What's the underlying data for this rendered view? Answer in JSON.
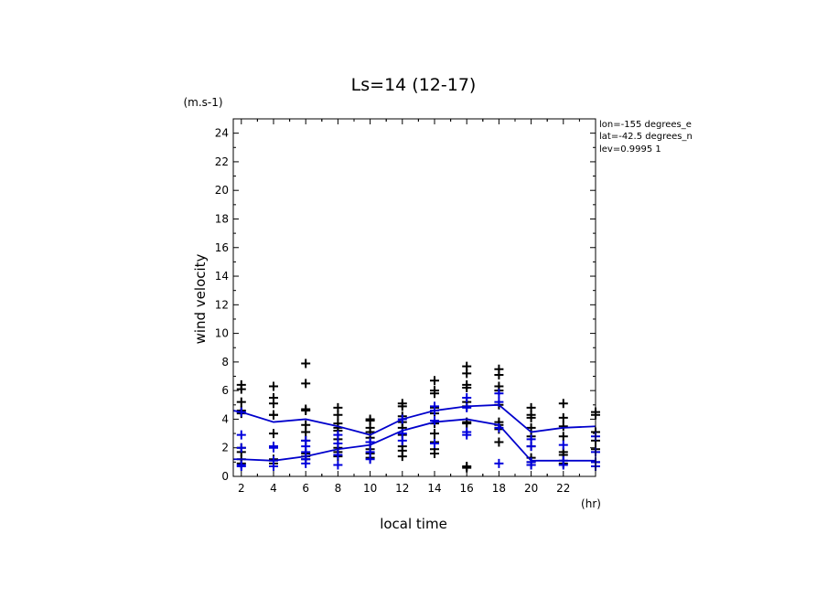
{
  "chart_data": {
    "type": "line",
    "title": "Ls=14 (12-17)",
    "ylabel": "wind velocity",
    "yunit": "(m.s-1)",
    "xlabel": "local time",
    "xunit": "(hr)",
    "info": [
      "lon=-155 degrees_e",
      "lat=-42.5 degrees_n",
      "lev=0.9995 1"
    ],
    "xlim": [
      1.5,
      24
    ],
    "ylim": [
      0,
      25
    ],
    "xticks": [
      2,
      4,
      6,
      8,
      10,
      12,
      14,
      16,
      18,
      20,
      22
    ],
    "yticks": [
      0,
      2,
      4,
      6,
      8,
      10,
      12,
      14,
      16,
      18,
      20,
      22,
      24
    ],
    "series": [
      {
        "color": "#0000cc",
        "x": [
          1.5,
          2,
          4,
          6,
          8,
          10,
          12,
          14,
          16,
          18,
          20,
          22,
          24
        ],
        "values": [
          4.6,
          4.5,
          3.8,
          4.0,
          3.5,
          2.9,
          4.0,
          4.6,
          4.9,
          5.0,
          3.1,
          3.4,
          3.5
        ]
      },
      {
        "color": "#0000cc",
        "x": [
          1.5,
          2,
          4,
          6,
          8,
          10,
          12,
          14,
          16,
          18,
          20,
          22,
          24
        ],
        "values": [
          1.2,
          1.2,
          1.1,
          1.4,
          1.9,
          2.2,
          3.2,
          3.8,
          4.0,
          3.6,
          1.1,
          1.1,
          1.1
        ]
      }
    ],
    "scatter_black": [
      {
        "x": 2,
        "values": [
          6.4,
          6.1,
          5.2,
          4.6,
          4.4,
          2.0,
          1.7,
          1.2,
          0.9
        ]
      },
      {
        "x": 4,
        "values": [
          6.3,
          5.5,
          5.1,
          4.3,
          4.3,
          3.0,
          2.1,
          1.2,
          0.9
        ]
      },
      {
        "x": 6,
        "values": [
          7.9,
          6.5,
          4.7,
          4.6,
          3.6,
          3.1,
          2.5,
          1.6,
          1.4,
          1.2
        ]
      },
      {
        "x": 8,
        "values": [
          4.8,
          4.3,
          3.7,
          3.4,
          3.2,
          2.6,
          2.0,
          1.7,
          1.4
        ]
      },
      {
        "x": 10,
        "values": [
          4.0,
          3.9,
          3.4,
          3.1,
          2.7,
          2.4,
          1.9,
          1.6,
          1.3
        ]
      },
      {
        "x": 12,
        "values": [
          5.1,
          4.9,
          4.2,
          3.8,
          3.4,
          2.9,
          2.1,
          1.8,
          1.4
        ]
      },
      {
        "x": 14,
        "values": [
          6.7,
          6.0,
          5.8,
          4.8,
          4.4,
          3.7,
          3.0,
          2.4,
          1.9,
          1.6
        ]
      },
      {
        "x": 16,
        "values": [
          7.7,
          7.2,
          6.4,
          6.2,
          5.2,
          4.9,
          3.8,
          3.7,
          0.7,
          0.6
        ]
      },
      {
        "x": 18,
        "values": [
          7.5,
          7.1,
          6.3,
          6.0,
          5.0,
          3.8,
          3.6,
          3.3,
          2.4
        ]
      },
      {
        "x": 20,
        "values": [
          4.8,
          4.3,
          4.1,
          3.4,
          2.8,
          2.1,
          1.3,
          1.0,
          0.8
        ]
      },
      {
        "x": 22,
        "values": [
          5.1,
          4.1,
          3.5,
          2.8,
          1.7,
          1.5,
          0.9
        ]
      },
      {
        "x": 24,
        "values": [
          4.5,
          4.3,
          3.1,
          2.5,
          1.9,
          1.0
        ]
      }
    ],
    "scatter_blue": [
      {
        "x": 2,
        "values": [
          4.5,
          2.9,
          2.0,
          0.8,
          0.7
        ]
      },
      {
        "x": 4,
        "values": [
          2.1,
          2.0,
          1.1,
          0.7
        ]
      },
      {
        "x": 6,
        "values": [
          2.5,
          2.1,
          1.7,
          1.2,
          0.9
        ]
      },
      {
        "x": 8,
        "values": [
          2.9,
          2.3,
          1.5,
          0.8
        ]
      },
      {
        "x": 10,
        "values": [
          2.4,
          1.7,
          1.2
        ]
      },
      {
        "x": 12,
        "values": [
          4.0,
          3.0,
          2.5
        ]
      },
      {
        "x": 14,
        "values": [
          4.9,
          4.6,
          3.9,
          2.3
        ]
      },
      {
        "x": 16,
        "values": [
          5.5,
          4.8,
          3.1,
          2.9
        ]
      },
      {
        "x": 18,
        "values": [
          5.8,
          5.2,
          3.4,
          0.9
        ]
      },
      {
        "x": 20,
        "values": [
          2.6,
          2.1,
          1.0,
          0.8
        ]
      },
      {
        "x": 22,
        "values": [
          2.2,
          1.1,
          0.8
        ]
      },
      {
        "x": 24,
        "values": [
          2.8,
          1.7,
          1.0,
          0.7
        ]
      }
    ]
  }
}
